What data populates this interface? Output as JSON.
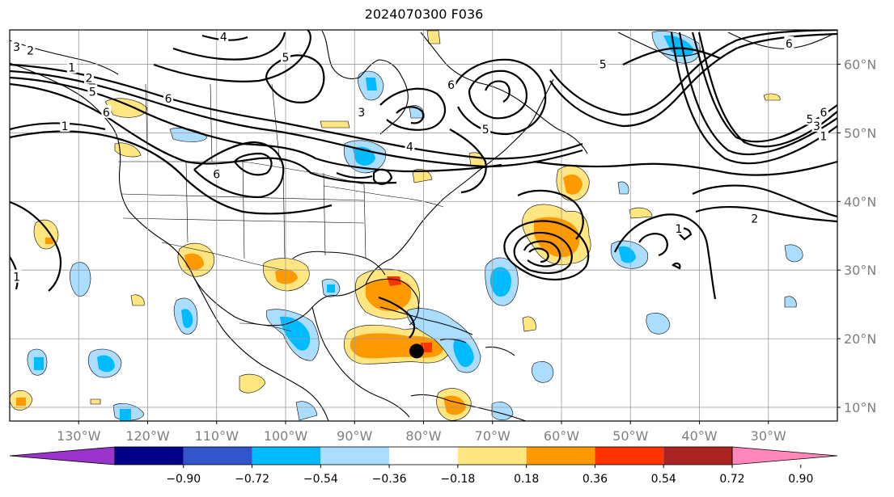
{
  "title": "2024070300 F036",
  "map": {
    "lon_min": -140,
    "lon_max": -20,
    "lat_min": 8,
    "lat_max": 65,
    "lat_ticks": [
      "10°N",
      "20°N",
      "30°N",
      "40°N",
      "50°N",
      "60°N"
    ],
    "lat_tick_values": [
      10,
      20,
      30,
      40,
      50,
      60
    ],
    "lon_ticks": [
      "130°W",
      "120°W",
      "110°W",
      "100°W",
      "90°W",
      "80°W",
      "70°W",
      "60°W",
      "50°W",
      "40°W",
      "30°W"
    ],
    "lon_tick_values": [
      -130,
      -120,
      -110,
      -100,
      -90,
      -80,
      -70,
      -60,
      -50,
      -40,
      -30
    ],
    "storm_marker": {
      "lon": -81,
      "lat": 18.2
    }
  },
  "colorbar": {
    "labels": [
      "−0.90",
      "−0.72",
      "−0.54",
      "−0.36",
      "−0.18",
      "0.18",
      "0.36",
      "0.54",
      "0.72",
      "0.90"
    ],
    "colors": [
      "#9933cc",
      "#000088",
      "#3355cc",
      "#00bbff",
      "#aaddff",
      "#ffffff",
      "#ffe680",
      "#ff9900",
      "#ff3300",
      "#aa2222",
      "#ff88bb"
    ]
  },
  "contour_labels": [
    {
      "text": "3",
      "lon": -139,
      "lat": 62.5
    },
    {
      "text": "2",
      "lon": -137,
      "lat": 62
    },
    {
      "text": "1",
      "lon": -131,
      "lat": 59.5
    },
    {
      "text": "2",
      "lon": -128.5,
      "lat": 58
    },
    {
      "text": "5",
      "lon": -128,
      "lat": 56
    },
    {
      "text": "4",
      "lon": -109,
      "lat": 64
    },
    {
      "text": "5",
      "lon": -100,
      "lat": 61
    },
    {
      "text": "6",
      "lon": -117,
      "lat": 55
    },
    {
      "text": "6",
      "lon": -126,
      "lat": 53
    },
    {
      "text": "1",
      "lon": -132,
      "lat": 51
    },
    {
      "text": "3",
      "lon": -89,
      "lat": 53
    },
    {
      "text": "6",
      "lon": -76,
      "lat": 57
    },
    {
      "text": "5",
      "lon": -71,
      "lat": 50.5
    },
    {
      "text": "4",
      "lon": -82,
      "lat": 48
    },
    {
      "text": "6",
      "lon": -110,
      "lat": 44
    },
    {
      "text": "6",
      "lon": -27,
      "lat": 63
    },
    {
      "text": "5",
      "lon": -54,
      "lat": 60
    },
    {
      "text": "6",
      "lon": -22,
      "lat": 53
    },
    {
      "text": "5",
      "lon": -24,
      "lat": 52
    },
    {
      "text": "3",
      "lon": -23,
      "lat": 51
    },
    {
      "text": "1",
      "lon": -22,
      "lat": 49.5
    },
    {
      "text": "2",
      "lon": -32,
      "lat": 37.5
    },
    {
      "text": "1",
      "lon": -43,
      "lat": 36
    },
    {
      "text": "1",
      "lon": -139,
      "lat": 29
    }
  ]
}
